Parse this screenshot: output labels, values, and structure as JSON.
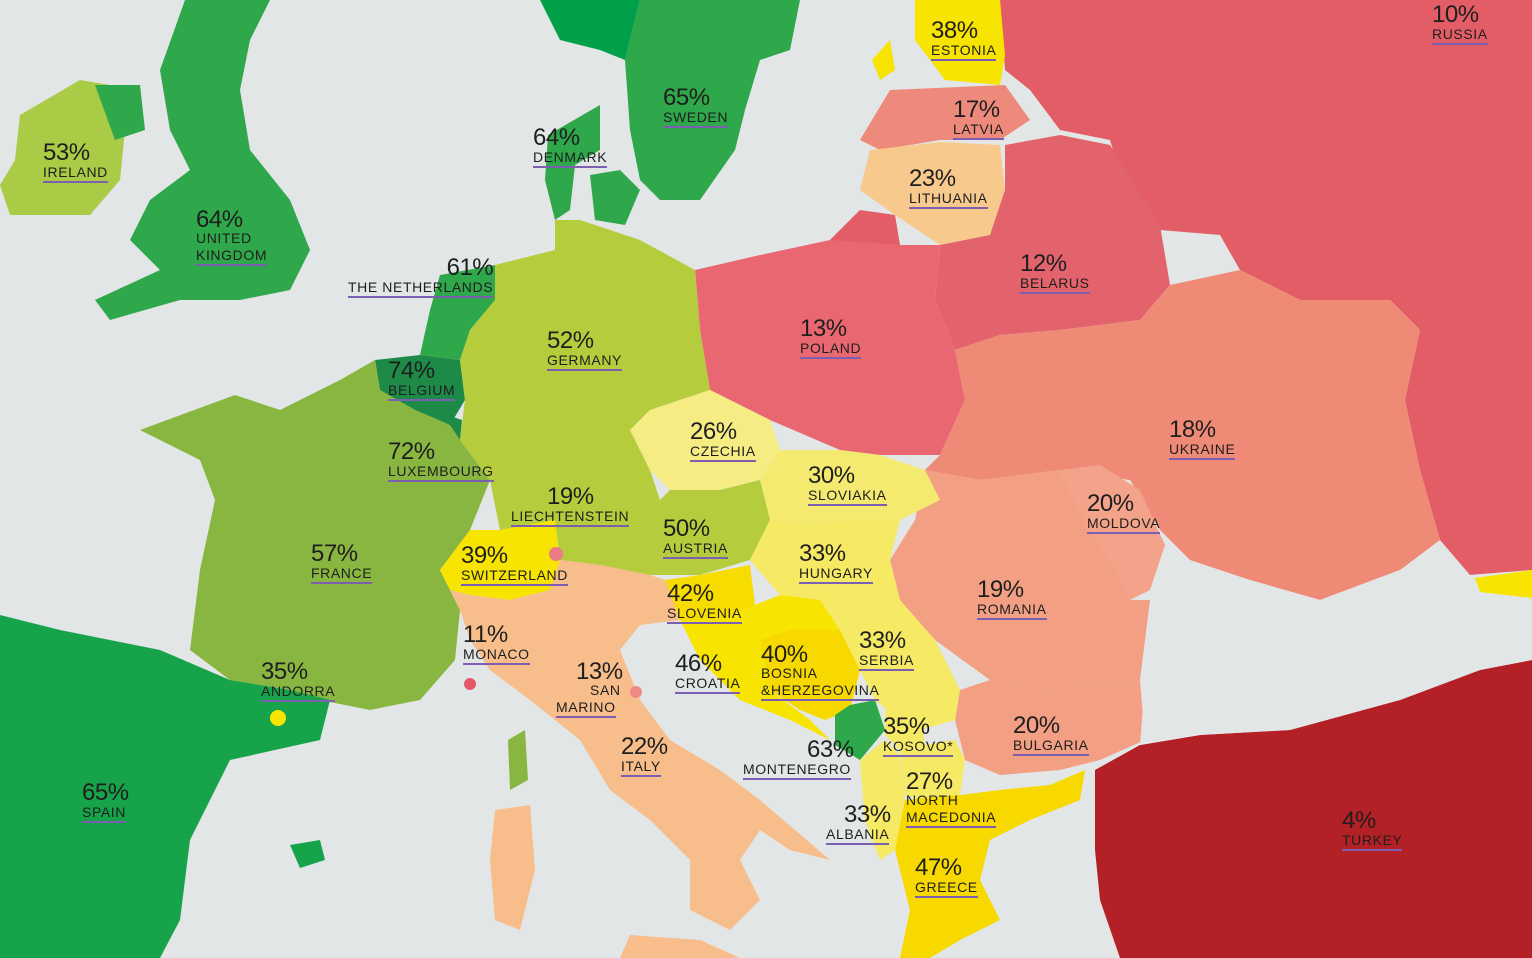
{
  "palette": {
    "sea": "#e3e6e6",
    "dark_green": "#1f9e4a",
    "green": "#2ea84a",
    "mid_green": "#6cb23f",
    "light_green": "#b5cd3c",
    "yellow": "#f7e400",
    "pale_yellow": "#f6ec84",
    "peach": "#f7c08a",
    "salmon": "#ef9379",
    "red": "#e7616a",
    "dark_red": "#b52226"
  },
  "countries": [
    {
      "id": "russia",
      "pct": "10%",
      "name": "RUSSIA"
    },
    {
      "id": "estonia",
      "pct": "38%",
      "name": "ESTONIA"
    },
    {
      "id": "latvia",
      "pct": "17%",
      "name": "LATVIA"
    },
    {
      "id": "lithuania",
      "pct": "23%",
      "name": "LITHUANIA"
    },
    {
      "id": "sweden",
      "pct": "65%",
      "name": "SWEDEN"
    },
    {
      "id": "denmark",
      "pct": "64%",
      "name": "DENMARK"
    },
    {
      "id": "ireland",
      "pct": "53%",
      "name": "IRELAND"
    },
    {
      "id": "uk",
      "pct": "64%",
      "name": "UNITED",
      "name2": "KINGDOM"
    },
    {
      "id": "netherlands",
      "pct": "61%",
      "name": "THE NETHERLANDS"
    },
    {
      "id": "belarus",
      "pct": "12%",
      "name": "BELARUS"
    },
    {
      "id": "poland",
      "pct": "13%",
      "name": "POLAND"
    },
    {
      "id": "germany",
      "pct": "52%",
      "name": "GERMANY"
    },
    {
      "id": "belgium",
      "pct": "74%",
      "name": "BELGIUM"
    },
    {
      "id": "luxembourg",
      "pct": "72%",
      "name": "LUXEMBOURG"
    },
    {
      "id": "czechia",
      "pct": "26%",
      "name": "CZECHIA"
    },
    {
      "id": "ukraine",
      "pct": "18%",
      "name": "UKRAINE"
    },
    {
      "id": "slovakia",
      "pct": "30%",
      "name": "SLOVIAKIA"
    },
    {
      "id": "liechtenstein",
      "pct": "19%",
      "name": "LIECHTENSTEIN"
    },
    {
      "id": "austria",
      "pct": "50%",
      "name": "AUSTRIA"
    },
    {
      "id": "moldova",
      "pct": "20%",
      "name": "MOLDOVA"
    },
    {
      "id": "switzerland",
      "pct": "39%",
      "name": "SWITZERLAND"
    },
    {
      "id": "france",
      "pct": "57%",
      "name": "FRANCE"
    },
    {
      "id": "hungary",
      "pct": "33%",
      "name": "HUNGARY"
    },
    {
      "id": "slovenia",
      "pct": "42%",
      "name": "SLOVENIA"
    },
    {
      "id": "romania",
      "pct": "19%",
      "name": "ROMANIA"
    },
    {
      "id": "monaco",
      "pct": "11%",
      "name": "MONACO"
    },
    {
      "id": "croatia",
      "pct": "46%",
      "name": "CROATIA"
    },
    {
      "id": "bosnia",
      "pct": "40%",
      "name": "BOSNIA",
      "name2": "&HERZEGOVINA"
    },
    {
      "id": "serbia",
      "pct": "33%",
      "name": "SERBIA"
    },
    {
      "id": "san_marino",
      "pct": "13%",
      "name": "SAN",
      "name2": "MARINO"
    },
    {
      "id": "andorra",
      "pct": "35%",
      "name": "ANDORRA"
    },
    {
      "id": "kosovo",
      "pct": "35%",
      "name": "KOSOVO*"
    },
    {
      "id": "bulgaria",
      "pct": "20%",
      "name": "BULGARIA"
    },
    {
      "id": "montenegro",
      "pct": "63%",
      "name": "MONTENEGRO"
    },
    {
      "id": "italy",
      "pct": "22%",
      "name": "ITALY"
    },
    {
      "id": "north_macedonia",
      "pct": "27%",
      "name": "NORTH",
      "name2": "MACEDONIA"
    },
    {
      "id": "spain",
      "pct": "65%",
      "name": "SPAIN"
    },
    {
      "id": "albania",
      "pct": "33%",
      "name": "ALBANIA"
    },
    {
      "id": "turkey",
      "pct": "4%",
      "name": "TURKEY"
    },
    {
      "id": "greece",
      "pct": "47%",
      "name": "GREECE"
    }
  ]
}
